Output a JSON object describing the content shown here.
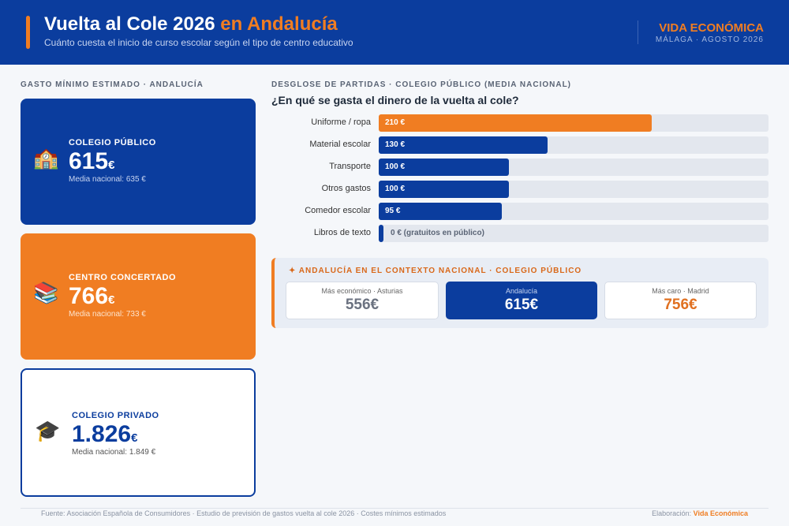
{
  "header": {
    "title": "Vuelta al Cole 2026",
    "title_highlight": "en Andalucía",
    "subtitle": "Cuánto cuesta el inicio de curso escolar según el tipo de centro educativo",
    "brand": "VIDA ECONÓMICA",
    "brand_sub": "MÁLAGA · AGOSTO 2026"
  },
  "left": {
    "heading": "GASTO MÍNIMO ESTIMADO · ANDALUCÍA",
    "cards": [
      {
        "icon": "🏫",
        "label": "COLEGIO PÚBLICO",
        "value": "615",
        "unit": "€",
        "note": "Media nacional: 635 €"
      },
      {
        "icon": "📚",
        "label": "CENTRO CONCERTADO",
        "value": "766",
        "unit": "€",
        "note": "Media nacional: 733 €"
      },
      {
        "icon": "🎓",
        "label": "COLEGIO PRIVADO",
        "value": "1.826",
        "unit": "€",
        "note": "Media nacional: 1.849 €"
      }
    ]
  },
  "chart_data": {
    "type": "bar",
    "heading": "DESGLOSE DE PARTIDAS · COLEGIO PÚBLICO (MEDIA NACIONAL)",
    "title": "¿En qué se gasta el dinero de la vuelta al cole?",
    "categories": [
      "Uniforme / ropa",
      "Material escolar",
      "Transporte",
      "Otros gastos",
      "Comedor escolar",
      "Libros de texto"
    ],
    "values": [
      210,
      130,
      100,
      100,
      95,
      0
    ],
    "value_labels": [
      "210 €",
      "130 €",
      "100 €",
      "100 €",
      "95 €",
      "0 € (gratuitos en público)"
    ],
    "colors": [
      "#f07d22",
      "#0b3d9e",
      "#0b3d9e",
      "#0b3d9e",
      "#0b3d9e",
      "#0b3d9e"
    ],
    "xlim": [
      0,
      300
    ]
  },
  "context": {
    "heading": "✦ ANDALUCÍA EN EL CONTEXTO NACIONAL · COLEGIO PÚBLICO",
    "boxes": [
      {
        "label": "Más económico · Asturias",
        "value": "556€"
      },
      {
        "label": "Andalucía",
        "value": "615€"
      },
      {
        "label": "Más caro · Madrid",
        "value": "756€"
      }
    ]
  },
  "footer": {
    "source": "Fuente: Asociación Española de Consumidores · Estudio de previsión de gastos vuelta al cole 2026 · Costes mínimos estimados",
    "credit_label": "Elaboración:",
    "credit": "Vida Económica"
  }
}
